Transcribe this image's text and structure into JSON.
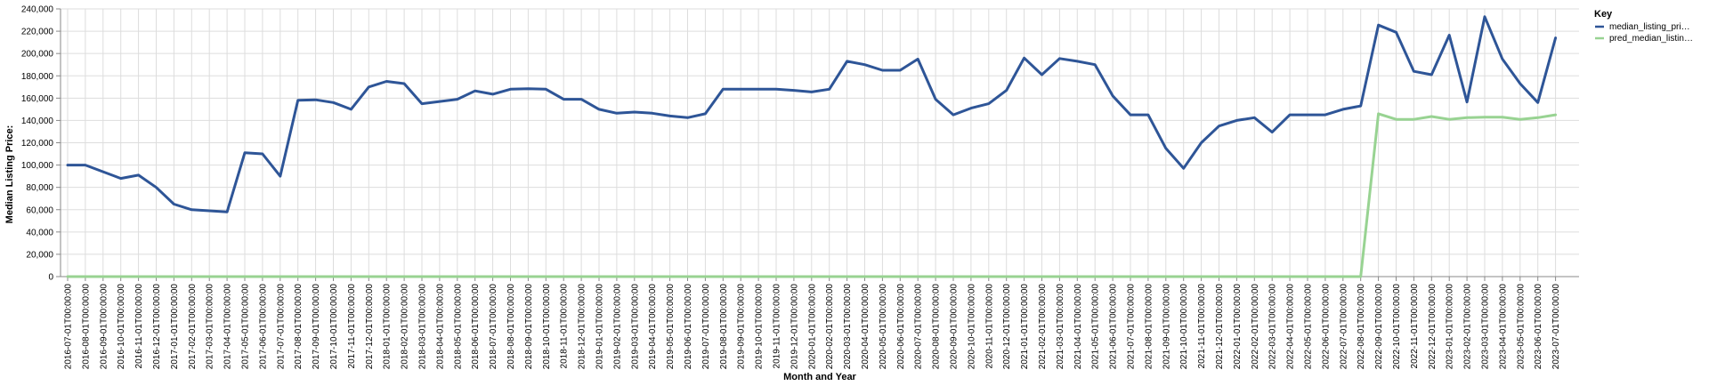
{
  "chart_data": {
    "type": "line",
    "xlabel": "Month and Year",
    "ylabel": "Median Listing Price:",
    "ylim": [
      0,
      240000
    ],
    "y_ticks": [
      0,
      20000,
      40000,
      60000,
      80000,
      100000,
      120000,
      140000,
      160000,
      180000,
      200000,
      220000,
      240000
    ],
    "y_tick_labels": [
      "0",
      "20,000",
      "40,000",
      "60,000",
      "80,000",
      "100,000",
      "120,000",
      "140,000",
      "160,000",
      "180,000",
      "200,000",
      "220,000",
      "240,000"
    ],
    "grid": true,
    "legend": {
      "title": "Key",
      "position": "right"
    },
    "x": [
      "2016-07-01T00:00:00",
      "2016-08-01T00:00:00",
      "2016-09-01T00:00:00",
      "2016-10-01T00:00:00",
      "2016-11-01T00:00:00",
      "2016-12-01T00:00:00",
      "2017-01-01T00:00:00",
      "2017-02-01T00:00:00",
      "2017-03-01T00:00:00",
      "2017-04-01T00:00:00",
      "2017-05-01T00:00:00",
      "2017-06-01T00:00:00",
      "2017-07-01T00:00:00",
      "2017-08-01T00:00:00",
      "2017-09-01T00:00:00",
      "2017-10-01T00:00:00",
      "2017-11-01T00:00:00",
      "2017-12-01T00:00:00",
      "2018-01-01T00:00:00",
      "2018-02-01T00:00:00",
      "2018-03-01T00:00:00",
      "2018-04-01T00:00:00",
      "2018-05-01T00:00:00",
      "2018-06-01T00:00:00",
      "2018-07-01T00:00:00",
      "2018-08-01T00:00:00",
      "2018-09-01T00:00:00",
      "2018-10-01T00:00:00",
      "2018-11-01T00:00:00",
      "2018-12-01T00:00:00",
      "2019-01-01T00:00:00",
      "2019-02-01T00:00:00",
      "2019-03-01T00:00:00",
      "2019-04-01T00:00:00",
      "2019-05-01T00:00:00",
      "2019-06-01T00:00:00",
      "2019-07-01T00:00:00",
      "2019-08-01T00:00:00",
      "2019-09-01T00:00:00",
      "2019-10-01T00:00:00",
      "2019-11-01T00:00:00",
      "2019-12-01T00:00:00",
      "2020-01-01T00:00:00",
      "2020-02-01T00:00:00",
      "2020-03-01T00:00:00",
      "2020-04-01T00:00:00",
      "2020-05-01T00:00:00",
      "2020-06-01T00:00:00",
      "2020-07-01T00:00:00",
      "2020-08-01T00:00:00",
      "2020-09-01T00:00:00",
      "2020-10-01T00:00:00",
      "2020-11-01T00:00:00",
      "2020-12-01T00:00:00",
      "2021-01-01T00:00:00",
      "2021-02-01T00:00:00",
      "2021-03-01T00:00:00",
      "2021-04-01T00:00:00",
      "2021-05-01T00:00:00",
      "2021-06-01T00:00:00",
      "2021-07-01T00:00:00",
      "2021-08-01T00:00:00",
      "2021-09-01T00:00:00",
      "2021-10-01T00:00:00",
      "2021-11-01T00:00:00",
      "2021-12-01T00:00:00",
      "2022-01-01T00:00:00",
      "2022-02-01T00:00:00",
      "2022-03-01T00:00:00",
      "2022-04-01T00:00:00",
      "2022-05-01T00:00:00",
      "2022-06-01T00:00:00",
      "2022-07-01T00:00:00",
      "2022-08-01T00:00:00",
      "2022-09-01T00:00:00",
      "2022-10-01T00:00:00",
      "2022-11-01T00:00:00",
      "2022-12-01T00:00:00",
      "2023-01-01T00:00:00",
      "2023-02-01T00:00:00",
      "2023-03-01T00:00:00",
      "2023-04-01T00:00:00",
      "2023-05-01T00:00:00",
      "2023-06-01T00:00:00",
      "2023-07-01T00:00:00"
    ],
    "series": [
      {
        "name": "median_listing_pri…",
        "color": "#2e5597",
        "values": [
          100000,
          100000,
          94000,
          88000,
          91000,
          80000,
          65000,
          60000,
          59000,
          58000,
          111000,
          110000,
          90000,
          158000,
          158500,
          156000,
          150000,
          170000,
          175000,
          173000,
          155000,
          157000,
          159000,
          166500,
          163500,
          168000,
          168500,
          168000,
          159000,
          159000,
          150000,
          146500,
          147500,
          146500,
          144000,
          142500,
          146000,
          168000,
          168000,
          168000,
          168000,
          167000,
          165500,
          168000,
          193000,
          190000,
          185000,
          185000,
          195000,
          159000,
          145000,
          151000,
          155000,
          167000,
          196000,
          181000,
          195500,
          193000,
          190000,
          162000,
          145000,
          145000,
          115000,
          97000,
          120000,
          135000,
          140000,
          142500,
          129500,
          145000,
          145000,
          145000,
          150000,
          153000,
          225500,
          219000,
          184000,
          181000,
          216500,
          156500,
          233000,
          195000,
          173000,
          156000,
          214000
        ]
      },
      {
        "name": "pred_median_listin…",
        "color": "#98d392",
        "values": [
          0,
          0,
          0,
          0,
          0,
          0,
          0,
          0,
          0,
          0,
          0,
          0,
          0,
          0,
          0,
          0,
          0,
          0,
          0,
          0,
          0,
          0,
          0,
          0,
          0,
          0,
          0,
          0,
          0,
          0,
          0,
          0,
          0,
          0,
          0,
          0,
          0,
          0,
          0,
          0,
          0,
          0,
          0,
          0,
          0,
          0,
          0,
          0,
          0,
          0,
          0,
          0,
          0,
          0,
          0,
          0,
          0,
          0,
          0,
          0,
          0,
          0,
          0,
          0,
          0,
          0,
          0,
          0,
          0,
          0,
          0,
          0,
          0,
          0,
          146000,
          141000,
          141000,
          143500,
          141000,
          142500,
          143000,
          143000,
          141000,
          142500,
          145000
        ]
      }
    ]
  }
}
